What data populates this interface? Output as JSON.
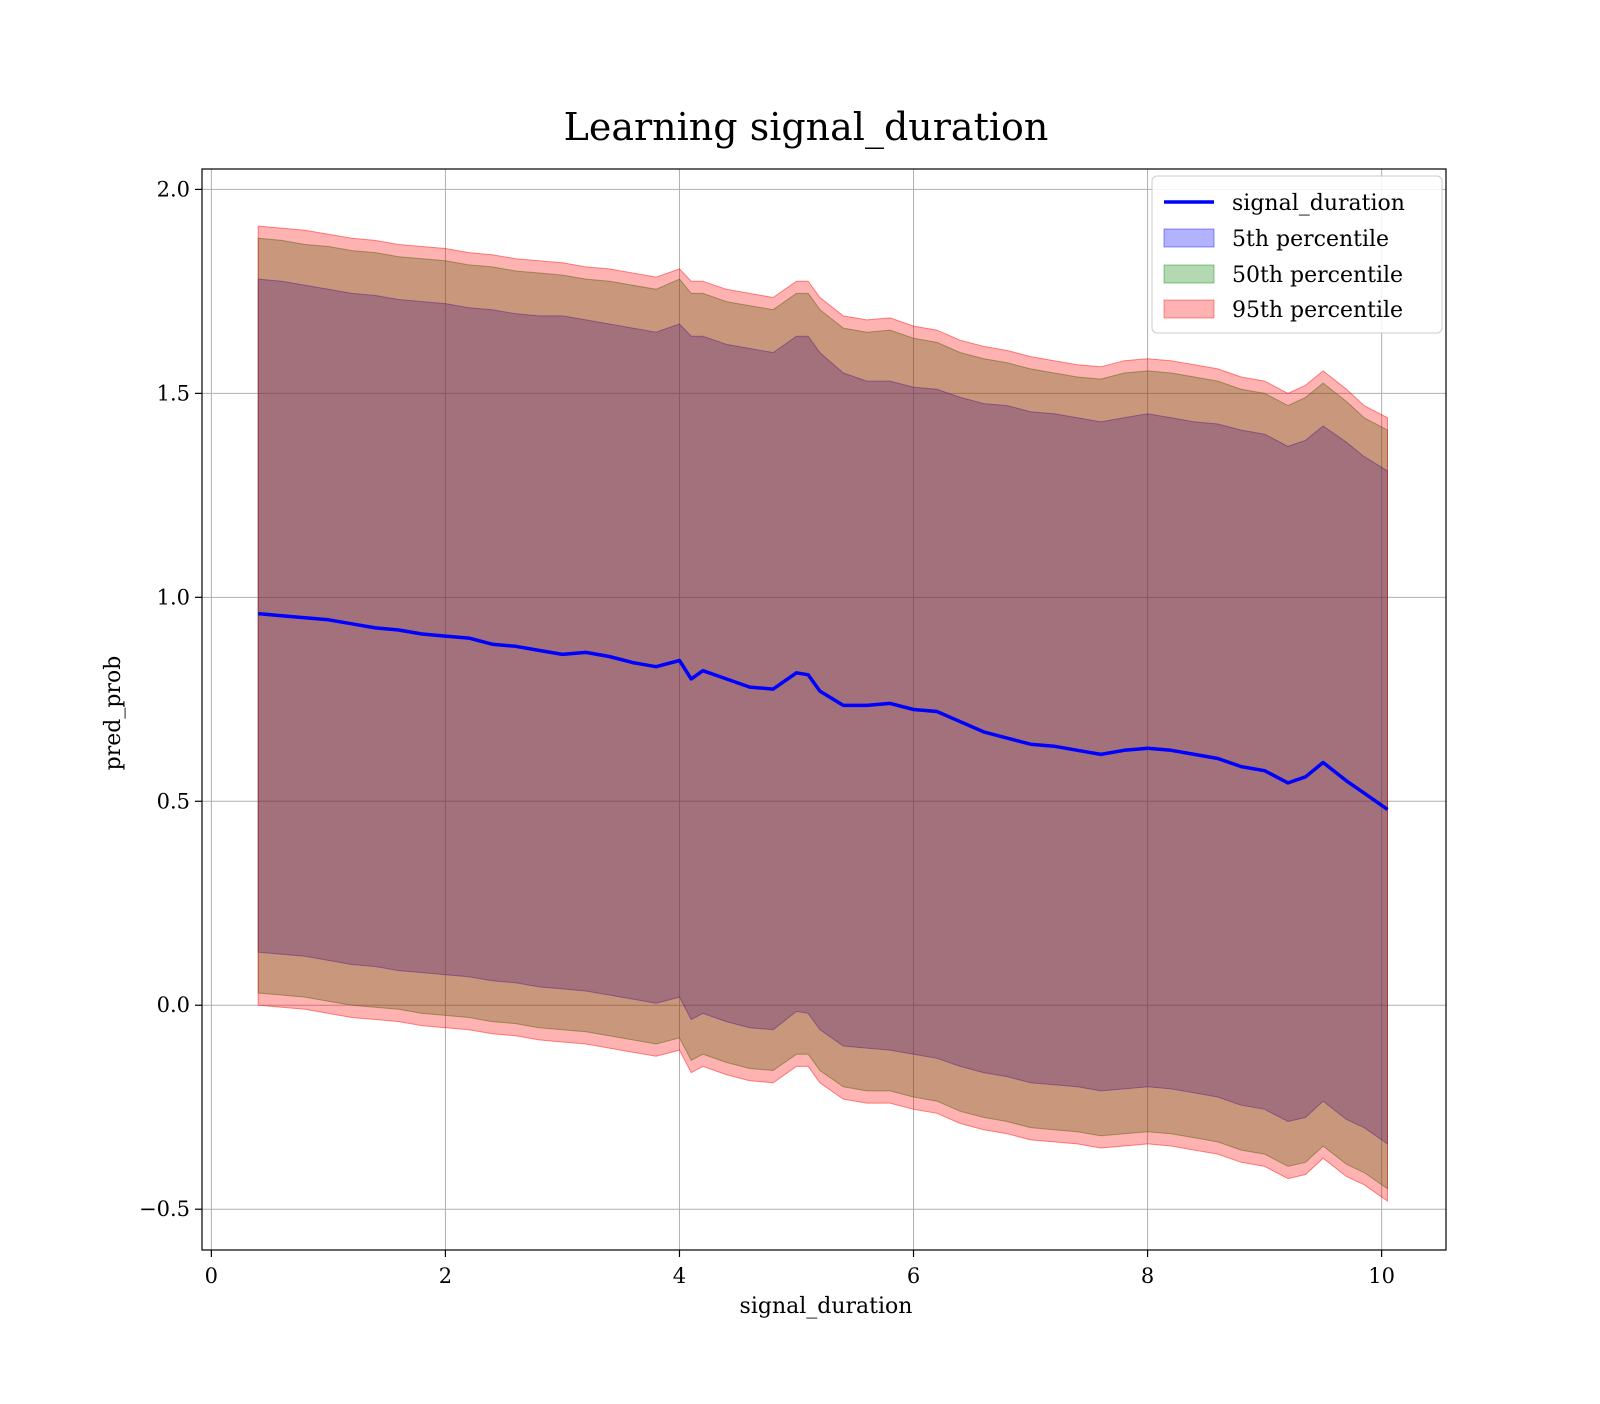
{
  "chart_data": {
    "type": "area",
    "title": "Learning signal_duration",
    "xlabel": "signal_duration",
    "ylabel": "pred_prob",
    "xlim": [
      -0.08,
      10.55
    ],
    "ylim": [
      -0.6,
      2.05
    ],
    "x_ticks": [
      0,
      2,
      4,
      6,
      8,
      10
    ],
    "x_tick_labels": [
      "0",
      "2",
      "4",
      "6",
      "8",
      "10"
    ],
    "y_ticks": [
      -0.5,
      0.0,
      0.5,
      1.0,
      1.5,
      2.0
    ],
    "y_tick_labels": [
      "−0.5",
      "0.0",
      "0.5",
      "1.0",
      "1.5",
      "2.0"
    ],
    "grid": true,
    "legend_position": "top-right",
    "x": [
      0.4,
      0.6,
      0.8,
      1.0,
      1.2,
      1.4,
      1.6,
      1.8,
      2.0,
      2.2,
      2.4,
      2.6,
      2.8,
      3.0,
      3.2,
      3.4,
      3.6,
      3.8,
      4.0,
      4.1,
      4.2,
      4.4,
      4.6,
      4.8,
      5.0,
      5.1,
      5.2,
      5.4,
      5.6,
      5.8,
      6.0,
      6.2,
      6.4,
      6.6,
      6.8,
      7.0,
      7.2,
      7.4,
      7.6,
      7.8,
      8.0,
      8.2,
      8.4,
      8.6,
      8.8,
      9.0,
      9.2,
      9.35,
      9.5,
      9.7,
      9.85,
      10.05
    ],
    "series": [
      {
        "name": "signal_duration",
        "kind": "line",
        "color": "#0000ff",
        "y": [
          0.96,
          0.955,
          0.95,
          0.945,
          0.935,
          0.925,
          0.92,
          0.91,
          0.905,
          0.9,
          0.885,
          0.88,
          0.87,
          0.86,
          0.865,
          0.855,
          0.84,
          0.83,
          0.845,
          0.8,
          0.82,
          0.8,
          0.78,
          0.775,
          0.815,
          0.81,
          0.77,
          0.735,
          0.735,
          0.74,
          0.725,
          0.72,
          0.695,
          0.67,
          0.655,
          0.64,
          0.635,
          0.625,
          0.615,
          0.625,
          0.63,
          0.625,
          0.615,
          0.605,
          0.585,
          0.575,
          0.545,
          0.56,
          0.595,
          0.55,
          0.52,
          0.48
        ]
      },
      {
        "name": "5th percentile",
        "kind": "band",
        "color": "#0000ff",
        "opacity": 0.3,
        "upper": [
          1.78,
          1.775,
          1.765,
          1.755,
          1.745,
          1.74,
          1.73,
          1.725,
          1.72,
          1.71,
          1.705,
          1.695,
          1.69,
          1.69,
          1.68,
          1.67,
          1.66,
          1.65,
          1.67,
          1.64,
          1.64,
          1.62,
          1.61,
          1.6,
          1.64,
          1.64,
          1.6,
          1.55,
          1.53,
          1.53,
          1.515,
          1.51,
          1.49,
          1.475,
          1.47,
          1.455,
          1.45,
          1.44,
          1.43,
          1.44,
          1.45,
          1.44,
          1.43,
          1.425,
          1.41,
          1.4,
          1.37,
          1.385,
          1.42,
          1.38,
          1.345,
          1.31
        ],
        "lower": [
          0.13,
          0.125,
          0.12,
          0.11,
          0.1,
          0.095,
          0.085,
          0.08,
          0.075,
          0.07,
          0.06,
          0.055,
          0.045,
          0.04,
          0.035,
          0.025,
          0.015,
          0.005,
          0.02,
          -0.035,
          -0.02,
          -0.04,
          -0.055,
          -0.06,
          -0.015,
          -0.02,
          -0.06,
          -0.1,
          -0.105,
          -0.11,
          -0.12,
          -0.13,
          -0.15,
          -0.165,
          -0.175,
          -0.19,
          -0.195,
          -0.2,
          -0.21,
          -0.205,
          -0.2,
          -0.205,
          -0.215,
          -0.225,
          -0.245,
          -0.255,
          -0.285,
          -0.275,
          -0.235,
          -0.28,
          -0.3,
          -0.34
        ]
      },
      {
        "name": "50th percentile",
        "kind": "band",
        "color": "#008000",
        "opacity": 0.3,
        "upper": [
          1.88,
          1.875,
          1.865,
          1.86,
          1.85,
          1.845,
          1.835,
          1.83,
          1.825,
          1.815,
          1.81,
          1.8,
          1.795,
          1.79,
          1.78,
          1.775,
          1.765,
          1.755,
          1.78,
          1.745,
          1.745,
          1.725,
          1.715,
          1.705,
          1.745,
          1.745,
          1.705,
          1.66,
          1.65,
          1.655,
          1.635,
          1.625,
          1.6,
          1.585,
          1.575,
          1.56,
          1.55,
          1.54,
          1.535,
          1.55,
          1.555,
          1.55,
          1.54,
          1.53,
          1.51,
          1.5,
          1.47,
          1.49,
          1.525,
          1.48,
          1.44,
          1.41
        ],
        "lower": [
          0.03,
          0.025,
          0.02,
          0.01,
          0.0,
          -0.005,
          -0.01,
          -0.02,
          -0.025,
          -0.03,
          -0.04,
          -0.045,
          -0.055,
          -0.06,
          -0.065,
          -0.075,
          -0.085,
          -0.095,
          -0.08,
          -0.135,
          -0.12,
          -0.14,
          -0.155,
          -0.16,
          -0.12,
          -0.12,
          -0.16,
          -0.2,
          -0.21,
          -0.21,
          -0.225,
          -0.235,
          -0.26,
          -0.275,
          -0.285,
          -0.3,
          -0.305,
          -0.31,
          -0.32,
          -0.315,
          -0.31,
          -0.315,
          -0.325,
          -0.335,
          -0.355,
          -0.365,
          -0.395,
          -0.385,
          -0.345,
          -0.39,
          -0.41,
          -0.45
        ]
      },
      {
        "name": "95th percentile",
        "kind": "band",
        "color": "#ff0000",
        "opacity": 0.3,
        "upper": [
          1.91,
          1.905,
          1.9,
          1.89,
          1.88,
          1.875,
          1.865,
          1.86,
          1.855,
          1.845,
          1.84,
          1.83,
          1.825,
          1.82,
          1.81,
          1.805,
          1.795,
          1.785,
          1.805,
          1.775,
          1.775,
          1.755,
          1.745,
          1.735,
          1.775,
          1.775,
          1.735,
          1.69,
          1.68,
          1.685,
          1.665,
          1.655,
          1.63,
          1.615,
          1.605,
          1.59,
          1.58,
          1.57,
          1.565,
          1.58,
          1.585,
          1.58,
          1.57,
          1.56,
          1.54,
          1.53,
          1.5,
          1.52,
          1.555,
          1.51,
          1.47,
          1.44
        ],
        "lower": [
          0.0,
          -0.005,
          -0.01,
          -0.02,
          -0.03,
          -0.035,
          -0.04,
          -0.05,
          -0.055,
          -0.06,
          -0.07,
          -0.075,
          -0.085,
          -0.09,
          -0.095,
          -0.105,
          -0.115,
          -0.125,
          -0.11,
          -0.165,
          -0.15,
          -0.17,
          -0.185,
          -0.19,
          -0.15,
          -0.15,
          -0.19,
          -0.23,
          -0.24,
          -0.24,
          -0.255,
          -0.265,
          -0.29,
          -0.305,
          -0.315,
          -0.33,
          -0.335,
          -0.34,
          -0.35,
          -0.345,
          -0.34,
          -0.345,
          -0.355,
          -0.365,
          -0.385,
          -0.395,
          -0.425,
          -0.415,
          -0.375,
          -0.42,
          -0.44,
          -0.48
        ]
      }
    ]
  }
}
